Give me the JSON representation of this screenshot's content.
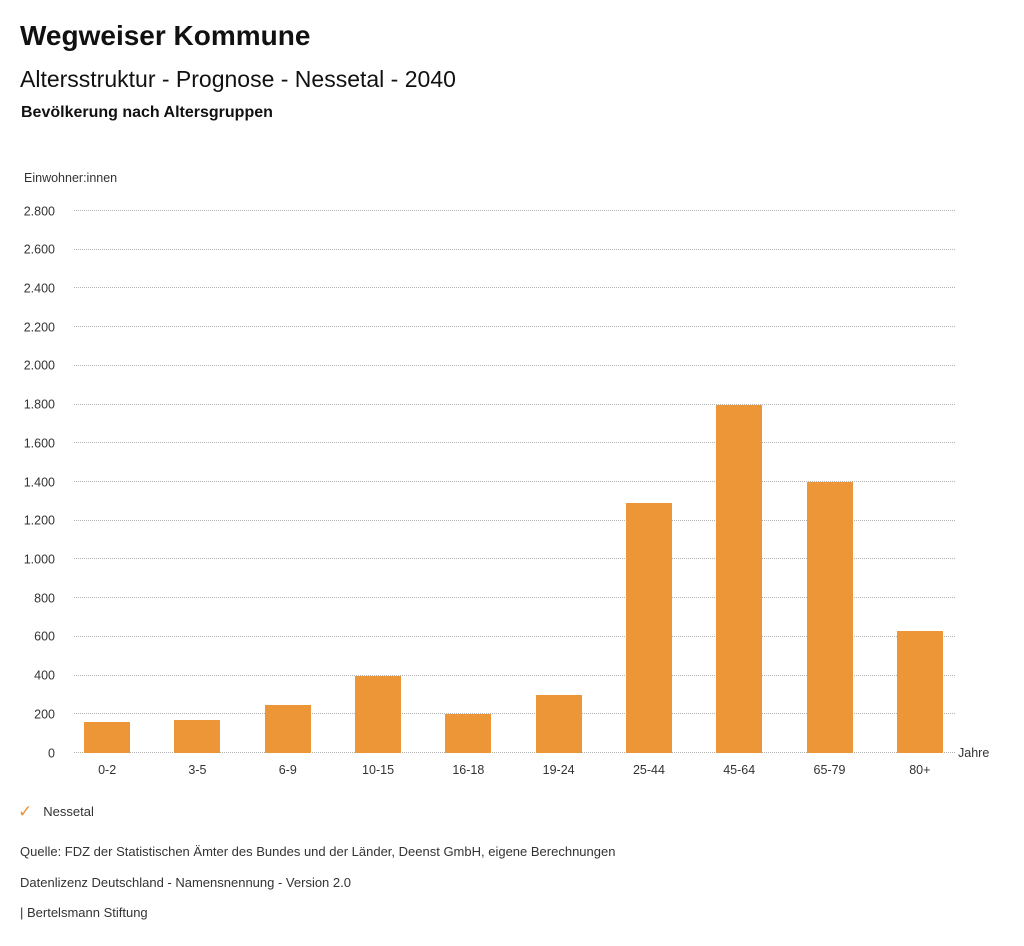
{
  "header": {
    "title": "Wegweiser Kommune",
    "subtitle": "Altersstruktur - Prognose - Nessetal - 2040",
    "heading": "Bevölkerung nach Altersgruppen"
  },
  "chart_data": {
    "type": "bar",
    "title": "Bevölkerung nach Altersgruppen",
    "categories": [
      "0-2",
      "3-5",
      "6-9",
      "10-15",
      "16-18",
      "19-24",
      "25-44",
      "45-64",
      "65-79",
      "80+"
    ],
    "values": [
      160,
      170,
      250,
      400,
      200,
      300,
      1290,
      1800,
      1400,
      630
    ],
    "series_name": "Nessetal",
    "xlabel": "Jahre",
    "ylabel": "Einwohner:innen",
    "ylim": [
      0,
      2800
    ],
    "ytick_step": 200,
    "ytick_labels": [
      "0",
      "200",
      "400",
      "600",
      "800",
      "1.000",
      "1.200",
      "1.400",
      "1.600",
      "1.800",
      "2.000",
      "2.200",
      "2.400",
      "2.600",
      "2.800"
    ],
    "grid": "horizontal dotted",
    "legend_position": "bottom-left",
    "bar_color": "#ED9637",
    "gridline_color": "#b3b3b3"
  },
  "legend": {
    "check_icon": "✓",
    "label": "Nessetal",
    "color": "#E8953C"
  },
  "footer": {
    "source": "Quelle: FDZ der Statistischen Ämter des Bundes und der Länder, Deenst GmbH, eigene Berechnungen",
    "license": "Datenlizenz Deutschland - Namensnennung - Version 2.0",
    "attribution": "| Bertelsmann Stiftung"
  }
}
